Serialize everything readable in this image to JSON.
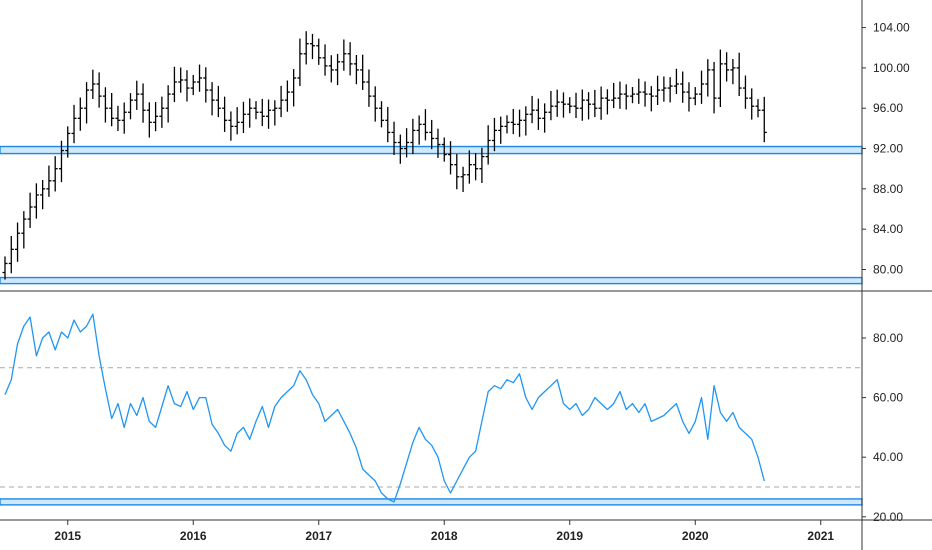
{
  "colors": {
    "price_bars": "#000000",
    "indicator_line": "#2196f3",
    "zone_fill": "#cfe8fb",
    "zone_border": "#1e88e5",
    "reference_line": "#aaaaaa",
    "axis": "#333333",
    "grid": "#eeeeee"
  },
  "chart_data": [
    {
      "type": "bar",
      "style": "ohlc",
      "pane": "price",
      "x_range": [
        2014.5,
        2021.15
      ],
      "ylim": [
        78.5,
        105.5
      ],
      "y_ticks": [
        "104.00",
        "100.00",
        "96.00",
        "92.00",
        "88.00",
        "84.00",
        "80.00"
      ],
      "y_tick_values": [
        104,
        100,
        96,
        92,
        88,
        84,
        80
      ],
      "x_ticks": [
        "2015",
        "2016",
        "2017",
        "2018",
        "2019",
        "2020",
        "2021"
      ],
      "x_tick_values": [
        2015,
        2016,
        2017,
        2018,
        2019,
        2020,
        2021
      ],
      "grid": false,
      "support_zones": [
        [
          91.5,
          92.2
        ],
        [
          78.6,
          79.2
        ]
      ],
      "series": [
        {
          "x": [
            2014.5,
            2014.55,
            2014.6,
            2014.65,
            2014.7,
            2014.75,
            2014.8,
            2014.85,
            2014.9,
            2014.95,
            2015.0,
            2015.05,
            2015.1,
            2015.15,
            2015.2,
            2015.25,
            2015.3,
            2015.35,
            2015.4,
            2015.45,
            2015.5,
            2015.55,
            2015.6,
            2015.65,
            2015.7,
            2015.75,
            2015.8,
            2015.85,
            2015.9,
            2015.95,
            2016.0,
            2016.05,
            2016.1,
            2016.15,
            2016.2,
            2016.25,
            2016.3,
            2016.35,
            2016.4,
            2016.45,
            2016.5,
            2016.55,
            2016.6,
            2016.65,
            2016.7,
            2016.75,
            2016.8,
            2016.85,
            2016.9,
            2016.95,
            2017.0,
            2017.05,
            2017.1,
            2017.15,
            2017.2,
            2017.25,
            2017.3,
            2017.35,
            2017.4,
            2017.45,
            2017.5,
            2017.55,
            2017.6,
            2017.65,
            2017.7,
            2017.75,
            2017.8,
            2017.85,
            2017.9,
            2017.95,
            2018.0,
            2018.05,
            2018.1,
            2018.15,
            2018.2,
            2018.25,
            2018.3,
            2018.35,
            2018.4,
            2018.45,
            2018.5,
            2018.55,
            2018.6,
            2018.65,
            2018.7,
            2018.75,
            2018.8,
            2018.85,
            2018.9,
            2018.95,
            2019.0,
            2019.05,
            2019.1,
            2019.15,
            2019.2,
            2019.25,
            2019.3,
            2019.35,
            2019.4,
            2019.45,
            2019.5,
            2019.55,
            2019.6,
            2019.65,
            2019.7,
            2019.75,
            2019.8,
            2019.85,
            2019.9,
            2019.95,
            2020.0,
            2020.05,
            2020.1,
            2020.15,
            2020.2,
            2020.25,
            2020.3,
            2020.35,
            2020.4,
            2020.45,
            2020.5,
            2020.55
          ],
          "y": [
            80.6,
            82.0,
            83.6,
            85.0,
            86.2,
            87.4,
            88.0,
            88.8,
            90.0,
            91.8,
            93.5,
            95.0,
            96.0,
            97.8,
            98.4,
            97.2,
            96.0,
            95.0,
            94.8,
            95.6,
            96.8,
            97.4,
            95.8,
            94.6,
            95.2,
            96.0,
            97.4,
            98.6,
            98.8,
            98.0,
            98.6,
            99.0,
            97.8,
            96.8,
            96.0,
            94.8,
            94.2,
            94.6,
            95.4,
            96.0,
            95.6,
            95.2,
            95.8,
            96.0,
            96.8,
            97.6,
            99.0,
            101.4,
            102.4,
            102.2,
            101.0,
            100.2,
            99.8,
            100.6,
            101.4,
            100.4,
            99.8,
            98.6,
            97.2,
            96.0,
            94.8,
            93.6,
            92.6,
            92.0,
            92.6,
            93.8,
            94.4,
            93.6,
            93.0,
            92.4,
            91.4,
            90.4,
            89.2,
            89.4,
            90.4,
            90.0,
            91.2,
            92.8,
            93.8,
            94.2,
            94.6,
            94.4,
            94.8,
            95.4,
            95.8,
            95.0,
            95.6,
            96.2,
            96.6,
            96.4,
            96.2,
            96.0,
            96.8,
            96.4,
            96.0,
            97.0,
            96.8,
            97.0,
            97.4,
            97.2,
            97.4,
            97.6,
            97.4,
            97.2,
            97.8,
            98.0,
            98.2,
            98.4,
            97.6,
            97.0,
            97.4,
            98.4,
            99.8,
            97.0,
            100.4,
            99.8,
            100.0,
            98.0,
            97.0,
            96.2,
            95.8,
            93.6
          ]
        }
      ]
    },
    {
      "type": "line",
      "pane": "indicator",
      "x_range": [
        2014.5,
        2021.15
      ],
      "ylim": [
        19.5,
        93
      ],
      "y_ticks": [
        "80.00",
        "60.00",
        "40.00",
        "20.00"
      ],
      "y_tick_values": [
        80,
        60,
        40,
        20
      ],
      "x_ticks": [
        "2015",
        "2016",
        "2017",
        "2018",
        "2019",
        "2020",
        "2021"
      ],
      "x_tick_values": [
        2015,
        2016,
        2017,
        2018,
        2019,
        2020,
        2021
      ],
      "grid": false,
      "reference_lines": [
        70,
        30
      ],
      "support_zones": [
        [
          24.0,
          26.0
        ]
      ],
      "series": [
        {
          "x": [
            2014.5,
            2014.55,
            2014.6,
            2014.65,
            2014.7,
            2014.75,
            2014.8,
            2014.85,
            2014.9,
            2014.95,
            2015.0,
            2015.05,
            2015.1,
            2015.15,
            2015.2,
            2015.25,
            2015.3,
            2015.35,
            2015.4,
            2015.45,
            2015.5,
            2015.55,
            2015.6,
            2015.65,
            2015.7,
            2015.75,
            2015.8,
            2015.85,
            2015.9,
            2015.95,
            2016.0,
            2016.05,
            2016.1,
            2016.15,
            2016.2,
            2016.25,
            2016.3,
            2016.35,
            2016.4,
            2016.45,
            2016.5,
            2016.55,
            2016.6,
            2016.65,
            2016.7,
            2016.75,
            2016.8,
            2016.85,
            2016.9,
            2016.95,
            2017.0,
            2017.05,
            2017.1,
            2017.15,
            2017.2,
            2017.25,
            2017.3,
            2017.35,
            2017.4,
            2017.45,
            2017.5,
            2017.55,
            2017.6,
            2017.65,
            2017.7,
            2017.75,
            2017.8,
            2017.85,
            2017.9,
            2017.95,
            2018.0,
            2018.05,
            2018.1,
            2018.15,
            2018.2,
            2018.25,
            2018.3,
            2018.35,
            2018.4,
            2018.45,
            2018.5,
            2018.55,
            2018.6,
            2018.65,
            2018.7,
            2018.75,
            2018.8,
            2018.85,
            2018.9,
            2018.95,
            2019.0,
            2019.05,
            2019.1,
            2019.15,
            2019.2,
            2019.25,
            2019.3,
            2019.35,
            2019.4,
            2019.45,
            2019.5,
            2019.55,
            2019.6,
            2019.65,
            2019.7,
            2019.75,
            2019.8,
            2019.85,
            2019.9,
            2019.95,
            2020.0,
            2020.05,
            2020.1,
            2020.15,
            2020.2,
            2020.25,
            2020.3,
            2020.35,
            2020.4,
            2020.45,
            2020.5,
            2020.55
          ],
          "y": [
            61,
            66,
            78,
            84,
            87,
            74,
            80,
            82,
            76,
            82,
            80,
            86,
            82,
            84,
            88,
            74,
            63,
            53,
            58,
            50,
            58,
            54,
            60,
            52,
            50,
            57,
            64,
            58,
            57,
            62,
            56,
            60,
            60,
            51,
            48,
            44,
            42,
            48,
            50,
            46,
            52,
            57,
            50,
            57,
            60,
            62,
            64,
            69,
            66,
            61,
            58,
            52,
            54,
            56,
            52,
            48,
            43,
            36,
            34,
            32,
            28,
            26,
            25,
            31,
            38,
            45,
            50,
            46,
            44,
            40,
            32,
            28,
            32,
            36,
            40,
            42,
            52,
            62,
            64,
            63,
            66,
            65,
            68,
            60,
            56,
            60,
            62,
            64,
            66,
            58,
            56,
            58,
            54,
            56,
            60,
            58,
            56,
            58,
            62,
            56,
            58,
            55,
            58,
            52,
            53,
            54,
            56,
            58,
            52,
            48,
            52,
            60,
            46,
            64,
            55,
            52,
            55,
            50,
            48,
            46,
            40,
            32
          ]
        }
      ]
    }
  ]
}
